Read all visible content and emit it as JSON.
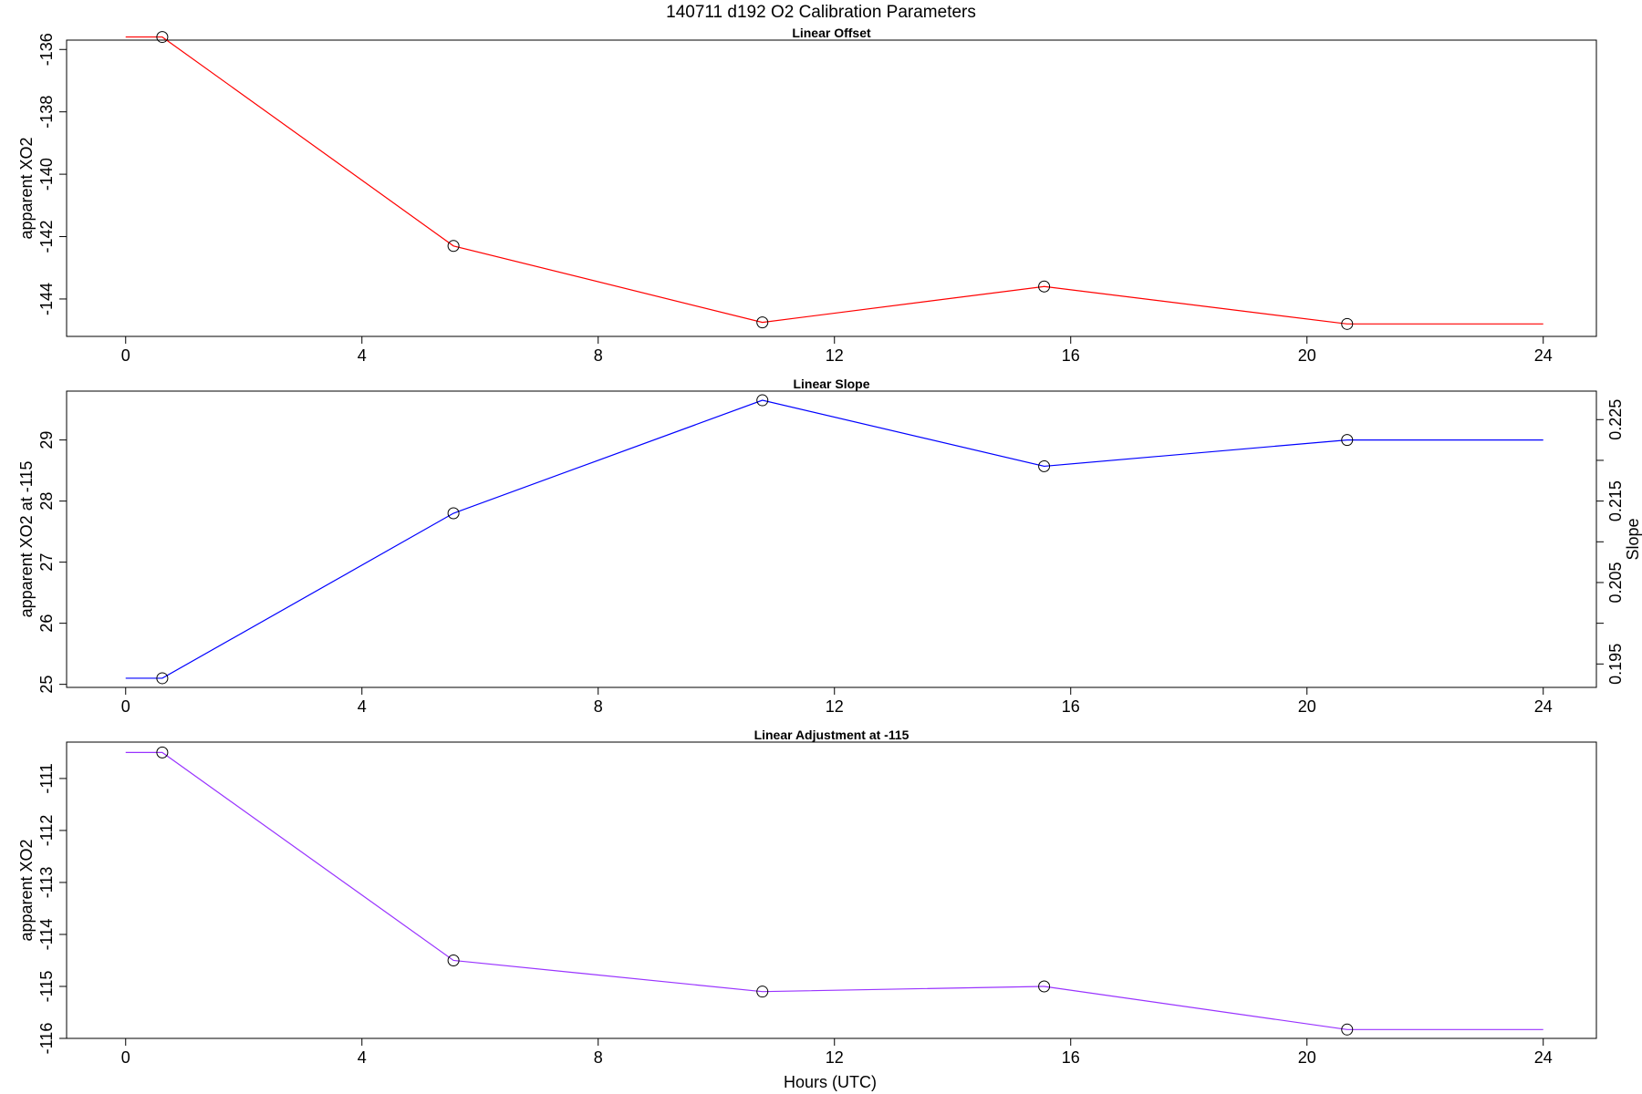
{
  "figure": {
    "title": "140711   d192   O2 Calibration Parameters",
    "xlabel": "Hours (UTC)"
  },
  "chart_data": [
    {
      "type": "line",
      "title": "Linear Offset",
      "xlabel": "",
      "ylabel": "apparent XO2",
      "xlim": [
        -1.0,
        24.9
      ],
      "ylim": [
        -145.2,
        -135.7
      ],
      "x_ticks": [
        0,
        4,
        8,
        12,
        16,
        20,
        24
      ],
      "y_ticks": [
        -144,
        -142,
        -140,
        -138,
        -136
      ],
      "grid": false,
      "series": [
        {
          "color": "#ff0000",
          "line_x": [
            0.0,
            0.62,
            5.55,
            10.78,
            15.55,
            20.68,
            24.0
          ],
          "line_y": [
            -135.6,
            -135.6,
            -142.3,
            -144.75,
            -143.6,
            -144.8,
            -144.8
          ],
          "points_x": [
            0.62,
            5.55,
            10.78,
            15.55,
            20.68
          ],
          "points_y": [
            -135.6,
            -142.3,
            -144.75,
            -143.6,
            -144.8
          ]
        }
      ]
    },
    {
      "type": "line",
      "title": "Linear Slope",
      "xlabel": "",
      "ylabel": "apparent XO2 at -115",
      "ylabel_right": "Slope",
      "xlim": [
        -1.0,
        24.9
      ],
      "ylim": [
        24.95,
        29.8
      ],
      "x_ticks": [
        0,
        4,
        8,
        12,
        16,
        20,
        24
      ],
      "y_ticks": [
        25,
        26,
        27,
        28,
        29
      ],
      "y2_ticks": [
        0.195,
        0.205,
        0.215,
        0.225
      ],
      "y2_minor_ticks": [
        0.2,
        0.21,
        0.22
      ],
      "y2_map": {
        "from": [
          25.0,
          29.0
        ],
        "to": [
          0.1925,
          0.2225
        ]
      },
      "grid": false,
      "series": [
        {
          "color": "#0000ff",
          "line_x": [
            0.0,
            0.62,
            5.55,
            10.78,
            15.55,
            20.68,
            24.0
          ],
          "line_y": [
            25.1,
            25.1,
            27.8,
            29.65,
            28.57,
            29.0,
            29.0
          ],
          "points_x": [
            0.62,
            5.55,
            10.78,
            15.55,
            20.68
          ],
          "points_y": [
            25.1,
            27.8,
            29.65,
            28.57,
            29.0
          ]
        }
      ]
    },
    {
      "type": "line",
      "title": "Linear Adjustment at -115",
      "xlabel": "Hours (UTC)",
      "ylabel": "apparent XO2",
      "xlim": [
        -1.0,
        24.9
      ],
      "ylim": [
        -116.0,
        -110.3
      ],
      "x_ticks": [
        0,
        4,
        8,
        12,
        16,
        20,
        24
      ],
      "y_ticks": [
        -116,
        -115,
        -114,
        -113,
        -112,
        -111
      ],
      "grid": false,
      "series": [
        {
          "color": "#9933ff",
          "line_x": [
            0.0,
            0.62,
            5.55,
            10.78,
            15.55,
            20.68,
            24.0
          ],
          "line_y": [
            -110.5,
            -110.5,
            -114.5,
            -115.1,
            -115.0,
            -115.83,
            -115.83
          ],
          "points_x": [
            0.62,
            5.55,
            10.78,
            15.55,
            20.68
          ],
          "points_y": [
            -110.5,
            -114.5,
            -115.1,
            -115.0,
            -115.83
          ]
        }
      ]
    }
  ]
}
